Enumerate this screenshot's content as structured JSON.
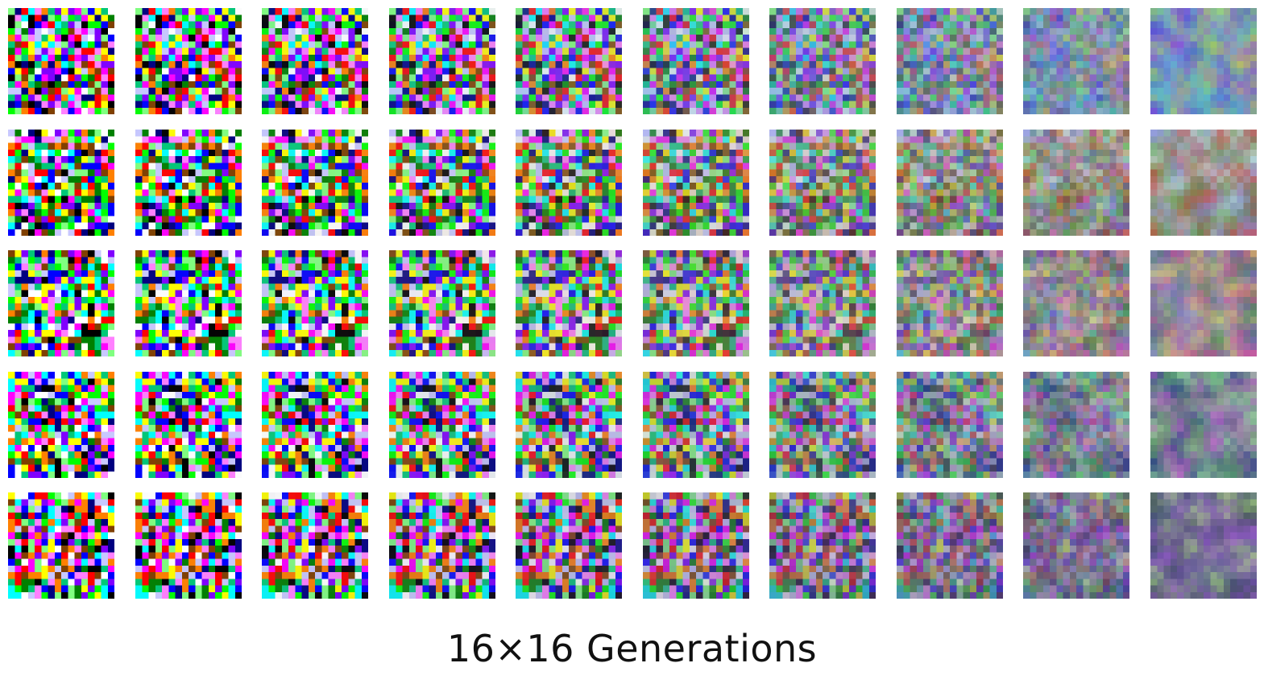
{
  "caption": "16×16 Generations",
  "grid": {
    "rows": 5,
    "columns": 10,
    "image_resolution": "16×16"
  },
  "row_palettes": [
    {
      "palette_colors": [
        "#9b4fd9",
        "#c8d24a",
        "#57c9d8",
        "#4a5ad1",
        "#7acb7a"
      ]
    },
    {
      "palette_colors": [
        "#c94a4a",
        "#6aa84f",
        "#8a8fd8",
        "#5a7a5a",
        "#c0e0e8"
      ]
    },
    {
      "palette_colors": [
        "#7a5ab8",
        "#e05090",
        "#4a8a5a",
        "#d8d860",
        "#9090c8"
      ]
    },
    {
      "palette_colors": [
        "#50a070",
        "#c050d0",
        "#2a3a8a",
        "#a0e0a0",
        "#6a8a6a"
      ]
    },
    {
      "palette_colors": [
        "#9a60c8",
        "#505a8a",
        "#b0e080",
        "#7a4ab8",
        "#40505a"
      ]
    }
  ]
}
